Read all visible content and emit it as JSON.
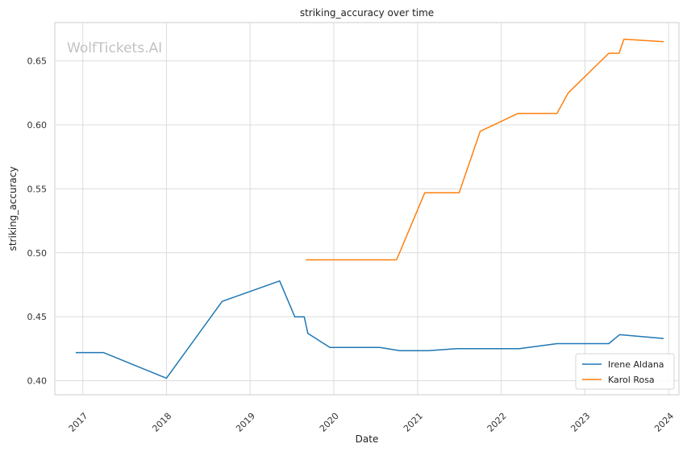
{
  "watermark": "WolfTickets.AI",
  "chart_data": {
    "type": "line",
    "title": "striking_accuracy over time",
    "xlabel": "Date",
    "ylabel": "striking_accuracy",
    "x_ticks": [
      "2017",
      "2018",
      "2019",
      "2020",
      "2021",
      "2022",
      "2023",
      "2024"
    ],
    "y_ticks": [
      "0.40",
      "0.45",
      "0.50",
      "0.55",
      "0.60",
      "0.65"
    ],
    "xlim": [
      "2016-09-01",
      "2024-02-15"
    ],
    "ylim": [
      0.389,
      0.68
    ],
    "grid": true,
    "legend_position": "bottom-right",
    "series": [
      {
        "name": "Irene Aldana",
        "color": "#1f77b4",
        "points": [
          [
            "2016-12-01",
            0.422
          ],
          [
            "2017-04-01",
            0.422
          ],
          [
            "2018-01-01",
            0.402
          ],
          [
            "2018-09-01",
            0.462
          ],
          [
            "2019-05-10",
            0.478
          ],
          [
            "2019-07-15",
            0.45
          ],
          [
            "2019-08-25",
            0.45
          ],
          [
            "2019-09-10",
            0.437
          ],
          [
            "2019-12-15",
            0.426
          ],
          [
            "2020-07-20",
            0.426
          ],
          [
            "2020-10-15",
            0.4235
          ],
          [
            "2021-02-15",
            0.4235
          ],
          [
            "2021-06-20",
            0.425
          ],
          [
            "2022-03-20",
            0.425
          ],
          [
            "2022-09-01",
            0.429
          ],
          [
            "2023-04-15",
            0.429
          ],
          [
            "2023-06-01",
            0.436
          ],
          [
            "2023-12-10",
            0.433
          ]
        ]
      },
      {
        "name": "Karol Rosa",
        "color": "#ff7f0e",
        "points": [
          [
            "2019-09-01",
            0.4945
          ],
          [
            "2020-10-01",
            0.4945
          ],
          [
            "2021-02-01",
            0.547
          ],
          [
            "2021-07-01",
            0.547
          ],
          [
            "2021-10-01",
            0.595
          ],
          [
            "2022-03-15",
            0.609
          ],
          [
            "2022-09-01",
            0.609
          ],
          [
            "2022-10-20",
            0.625
          ],
          [
            "2023-04-15",
            0.656
          ],
          [
            "2023-05-30",
            0.656
          ],
          [
            "2023-06-20",
            0.667
          ],
          [
            "2023-12-10",
            0.665
          ]
        ]
      }
    ]
  }
}
